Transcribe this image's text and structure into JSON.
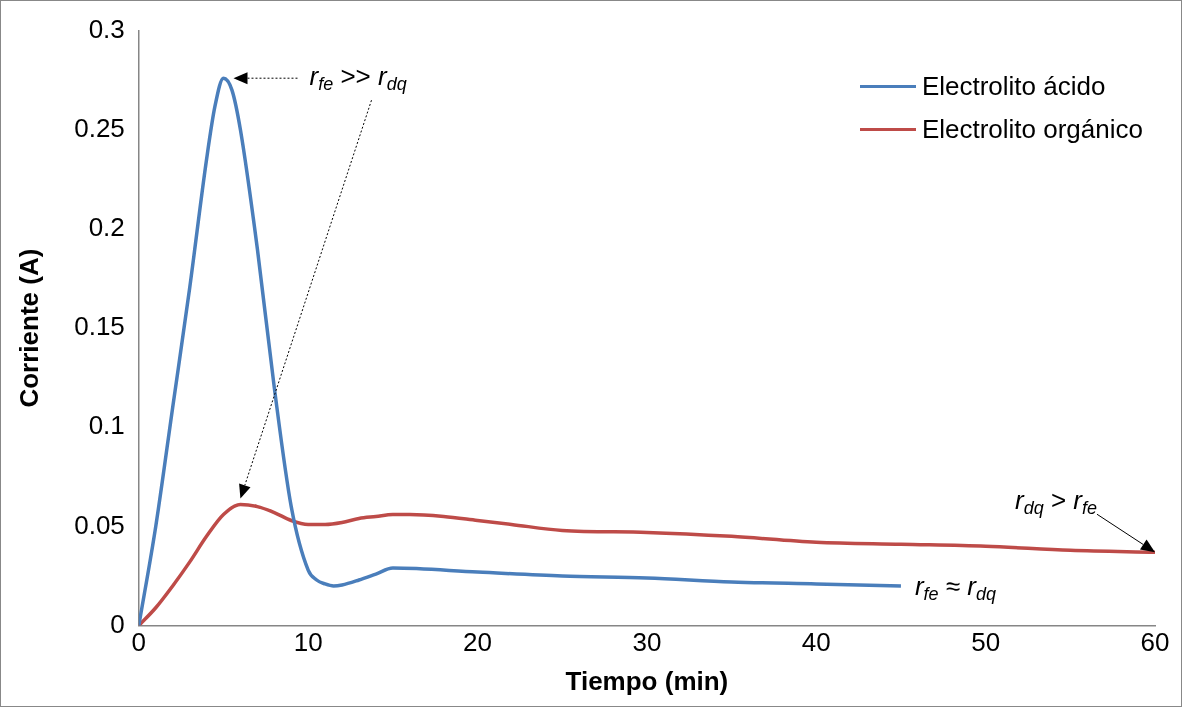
{
  "chart_data": {
    "type": "line",
    "xlabel": "Tiempo (min)",
    "ylabel": "Corriente (A)",
    "xlim": [
      0,
      60
    ],
    "xticks": [
      0,
      10,
      20,
      30,
      40,
      50,
      60
    ],
    "ylim": [
      0,
      0.3
    ],
    "yticks": [
      0,
      0.05,
      0.1,
      0.15,
      0.2,
      0.25,
      0.3
    ],
    "grid": false,
    "legend": "top right",
    "marker": "none",
    "line_style": "solid",
    "series": [
      {
        "name": "Electrolito ácido",
        "color": "#4a7ebb",
        "x": [
          0,
          1,
          2,
          3,
          4,
          4.5,
          5,
          5.5,
          6,
          7,
          8,
          9,
          10,
          10.5,
          11,
          11.5,
          12,
          13,
          14,
          15,
          20,
          25,
          30,
          35,
          40,
          45
        ],
        "values": [
          0,
          0.05,
          0.11,
          0.17,
          0.235,
          0.262,
          0.276,
          0.27,
          0.25,
          0.19,
          0.12,
          0.06,
          0.028,
          0.023,
          0.021,
          0.02,
          0.0205,
          0.023,
          0.026,
          0.029,
          0.027,
          0.025,
          0.024,
          0.022,
          0.021,
          0.02
        ]
      },
      {
        "name": "Electrolito orgánico",
        "color": "#be4b48",
        "x": [
          0,
          1,
          2,
          3,
          4,
          5,
          6,
          7,
          8,
          9,
          10,
          11,
          12,
          13,
          14,
          15,
          16,
          18,
          20,
          22,
          25,
          30,
          35,
          40,
          45,
          50,
          55,
          60
        ],
        "values": [
          0,
          0.009,
          0.02,
          0.032,
          0.045,
          0.056,
          0.061,
          0.06,
          0.057,
          0.053,
          0.051,
          0.051,
          0.052,
          0.054,
          0.055,
          0.056,
          0.056,
          0.055,
          0.053,
          0.051,
          0.048,
          0.047,
          0.045,
          0.042,
          0.041,
          0.04,
          0.038,
          0.037
        ]
      }
    ],
    "annotations": [
      "r$_{fe}$ >> r$_{dq}$",
      {
        "text": "r$_{fe}$ ≈ r$_{dq}$",
        "x": 45,
        "y": 0.02
      },
      {
        "text": "r$_{dq}$ > r$_{fe}$",
        "x": 60,
        "y": 0.037
      }
    ]
  }
}
